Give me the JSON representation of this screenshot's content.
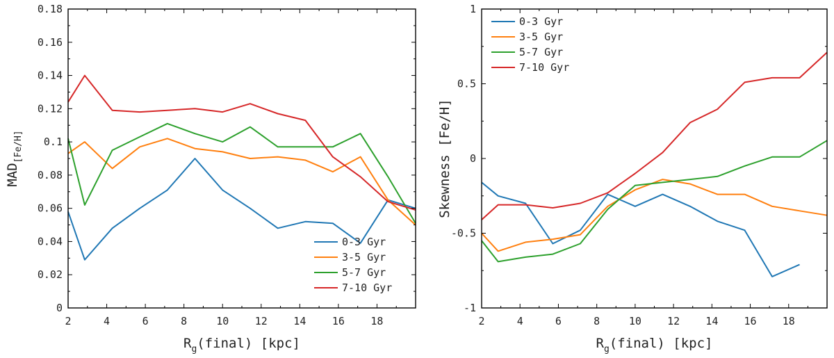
{
  "chart_data": [
    {
      "type": "line",
      "xlabel_main": "R",
      "xlabel_sub": "g",
      "xlabel_rest": "(final) [kpc]",
      "ylabel_main": "MAD",
      "ylabel_sub": "[Fe/H]",
      "xlim": [
        2,
        20
      ],
      "ylim": [
        0,
        0.18
      ],
      "xticks": [
        2,
        4,
        6,
        8,
        10,
        12,
        14,
        16,
        18
      ],
      "yticks": [
        0,
        0.02,
        0.04,
        0.06,
        0.08,
        0.1,
        0.12,
        0.14,
        0.16,
        0.18
      ],
      "ytick_labels": [
        "0",
        "0.02",
        "0.04",
        "0.06",
        "0.08",
        "0.1",
        "0.12",
        "0.14",
        "0.16",
        "0.18"
      ],
      "legend_position": "bottom-right",
      "x": [
        2.0,
        2.86,
        4.29,
        5.71,
        7.14,
        8.57,
        10.0,
        11.43,
        12.86,
        14.29,
        15.71,
        17.14,
        18.57,
        20.0
      ],
      "series": [
        {
          "name": "0-3 Gyr",
          "color": "#1f77b4",
          "values": [
            0.058,
            0.029,
            0.048,
            0.06,
            0.071,
            0.09,
            0.071,
            0.06,
            0.048,
            0.052,
            0.051,
            0.039,
            0.065,
            0.06
          ]
        },
        {
          "name": "3-5 Gyr",
          "color": "#ff7f0e",
          "values": [
            0.093,
            0.1,
            0.084,
            0.097,
            0.102,
            0.096,
            0.094,
            0.09,
            0.091,
            0.089,
            0.082,
            0.091,
            0.065,
            0.05
          ]
        },
        {
          "name": "5-7 Gyr",
          "color": "#2ca02c",
          "values": [
            0.102,
            0.062,
            0.095,
            0.103,
            0.111,
            0.105,
            0.1,
            0.109,
            0.097,
            0.097,
            0.097,
            0.105,
            0.079,
            0.051
          ]
        },
        {
          "name": "7-10 Gyr",
          "color": "#d62728",
          "values": [
            0.124,
            0.14,
            0.119,
            0.118,
            0.119,
            0.12,
            0.118,
            0.123,
            0.117,
            0.113,
            0.091,
            0.079,
            0.064,
            0.059
          ]
        }
      ]
    },
    {
      "type": "line",
      "xlabel_main": "R",
      "xlabel_sub": "g",
      "xlabel_rest": "(final) [kpc]",
      "ylabel_main": "Skewness [Fe/H]",
      "xlim": [
        2,
        20
      ],
      "ylim": [
        -1,
        1
      ],
      "xticks": [
        2,
        4,
        6,
        8,
        10,
        12,
        14,
        16,
        18
      ],
      "yticks": [
        -1,
        -0.5,
        0,
        0.5,
        1
      ],
      "ytick_labels": [
        "-1",
        "-0.5",
        "0",
        "0.5",
        "1"
      ],
      "legend_position": "top-left",
      "x": [
        2.0,
        2.86,
        4.29,
        5.71,
        7.14,
        8.57,
        10.0,
        11.43,
        12.86,
        14.29,
        15.71,
        17.14,
        18.57,
        20.0
      ],
      "series": [
        {
          "name": "0-3 Gyr",
          "color": "#1f77b4",
          "values": [
            -0.16,
            -0.25,
            -0.3,
            -0.57,
            -0.48,
            -0.24,
            -0.32,
            -0.24,
            -0.32,
            -0.42,
            -0.48,
            -0.79,
            -0.71,
            null
          ]
        },
        {
          "name": "3-5 Gyr",
          "color": "#ff7f0e",
          "values": [
            -0.5,
            -0.62,
            -0.56,
            -0.54,
            -0.51,
            -0.32,
            -0.21,
            -0.14,
            -0.17,
            -0.24,
            -0.24,
            -0.32,
            -0.35,
            -0.38
          ]
        },
        {
          "name": "5-7 Gyr",
          "color": "#2ca02c",
          "values": [
            -0.55,
            -0.69,
            -0.66,
            -0.64,
            -0.57,
            -0.34,
            -0.18,
            -0.16,
            -0.14,
            -0.12,
            -0.05,
            0.01,
            0.01,
            0.12
          ]
        },
        {
          "name": "7-10 Gyr",
          "color": "#d62728",
          "values": [
            -0.41,
            -0.31,
            -0.31,
            -0.33,
            -0.3,
            -0.23,
            -0.1,
            0.04,
            0.24,
            0.33,
            0.51,
            0.54,
            0.54,
            0.71
          ]
        }
      ]
    }
  ]
}
